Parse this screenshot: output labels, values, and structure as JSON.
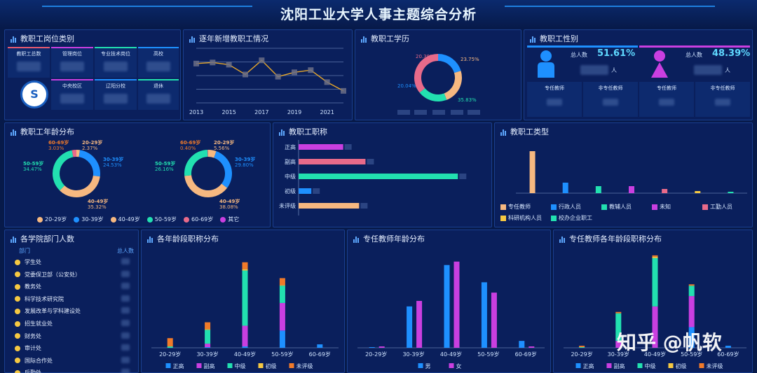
{
  "title": "沈阳工业大学人事主题综合分析",
  "watermark": "知乎 @帆软",
  "colors": {
    "blue": "#1e90ff",
    "magenta": "#c93fe0",
    "teal": "#22e0b0",
    "yellow": "#f5c842",
    "orange": "#f07a2a",
    "pink": "#e86a8a",
    "peach": "#f6b880"
  },
  "panels": {
    "post_type": {
      "title": "教职工岗位类别",
      "cells": [
        "教职工总数",
        "管理岗位",
        "专业技术岗位",
        "高校",
        "",
        "中央校区",
        "辽阳分校",
        "退休"
      ]
    },
    "yearly": {
      "title": "逐年新增教职工情况",
      "chart_data": {
        "type": "line",
        "x": [
          2013,
          2014,
          2015,
          2016,
          2017,
          2018,
          2019,
          2020,
          2021,
          2022
        ],
        "x_ticks": [
          "2013",
          "2015",
          "2017",
          "2019",
          "2021"
        ],
        "values": [
          72,
          74,
          70,
          52,
          78,
          48,
          56,
          60,
          38,
          22
        ],
        "ylim": [
          0,
          100
        ]
      }
    },
    "education": {
      "title": "教职工学历",
      "chart_data": {
        "type": "pie",
        "labels": [
          "20.38%",
          "23.75%",
          "20.04%",
          "35.83%"
        ],
        "values": [
          20.38,
          23.75,
          20.04,
          35.83
        ]
      }
    },
    "gender": {
      "title": "教职工性别",
      "male_label": "总人数",
      "male_pct": "51.61%",
      "female_label": "总人数",
      "female_pct": "48.39%",
      "unit": "人",
      "sub_left": "专任教师",
      "sub_right": "非专任教师"
    },
    "age": {
      "title": "教职工年龄分布",
      "chart_data": [
        {
          "type": "pie",
          "labels": [
            "20-29岁",
            "30-39岁",
            "40-49岁",
            "50-59岁",
            "60-69岁"
          ],
          "label_texts": [
            "20-29岁",
            "30-39岁",
            "40-49岁",
            "50-59岁",
            "60-69岁"
          ],
          "values": [
            2.37,
            24.53,
            35.32,
            34.47,
            3.03
          ],
          "pct_texts": [
            "2.37%",
            "24.53%",
            "35.32%",
            "34.47%",
            "3.03%"
          ]
        },
        {
          "type": "pie",
          "labels": [
            "20-29岁",
            "30-39岁",
            "40-49岁",
            "50-59岁",
            "60-69岁"
          ],
          "label_texts": [
            "20-29岁",
            "30-39岁",
            "40-49岁",
            "50-59岁",
            "60-69岁"
          ],
          "values": [
            5.56,
            29.8,
            38.08,
            26.16,
            0.4
          ],
          "pct_texts": [
            "5.56%",
            "29.80%",
            "38.08%",
            "26.16%",
            "0.40%"
          ]
        }
      ],
      "legend": [
        "20-29岁",
        "30-39岁",
        "40-49岁",
        "50-59岁",
        "60-69岁",
        "其它"
      ]
    },
    "rank": {
      "title": "教职工职称",
      "chart_data": {
        "type": "bar",
        "categories": [
          "正高",
          "副高",
          "中级",
          "初级",
          "未评级"
        ],
        "values": [
          28,
          42,
          100,
          8,
          38
        ],
        "xlim": [
          0,
          110
        ]
      }
    },
    "staff_type": {
      "title": "教职工类型",
      "chart_data": {
        "type": "bar",
        "categories": [
          "专任教师",
          "行政人员",
          "教辅人员",
          "未知",
          "工勤人员",
          "科研机构人员",
          "校办企业职工"
        ],
        "values": [
          60,
          15,
          10,
          10,
          6,
          3,
          2
        ],
        "ylim": [
          0,
          70
        ]
      },
      "legend": [
        "专任教师",
        "行政人员",
        "教辅人员",
        "未知",
        "工勤人员",
        "科研机构人员",
        "校办企业职工"
      ]
    },
    "departments": {
      "title": "各学院部门人数",
      "col_dept": "部门",
      "col_count": "总人数",
      "items": [
        "学生处",
        "党委保卫部（公安处）",
        "教务处",
        "科学技术研究院",
        "发展改革与学科建设处",
        "招生就业处",
        "财务处",
        "审计处",
        "国际合作处",
        "后勤处"
      ]
    },
    "age_rank": {
      "title": "各年龄段职称分布",
      "chart_data": {
        "type": "bar",
        "stacked": true,
        "categories": [
          "20-29岁",
          "30-39岁",
          "40-49岁",
          "50-59岁",
          "60-69岁"
        ],
        "series": [
          {
            "name": "正高",
            "values": [
              0,
              1,
              2,
              25,
              5
            ]
          },
          {
            "name": "副高",
            "values": [
              0,
              5,
              30,
              40,
              0
            ]
          },
          {
            "name": "中级",
            "values": [
              2,
              20,
              80,
              25,
              0
            ]
          },
          {
            "name": "初级",
            "values": [
              0,
              1,
              2,
              1,
              0
            ]
          },
          {
            "name": "未评级",
            "values": [
              12,
              10,
              10,
              10,
              0
            ]
          }
        ],
        "ylim": [
          0,
          140
        ]
      }
    },
    "teacher_age": {
      "title": "专任教师年龄分布",
      "chart_data": {
        "type": "bar",
        "categories": [
          "20-29岁",
          "30-39岁",
          "40-49岁",
          "50-59岁",
          "60-69岁"
        ],
        "series": [
          {
            "name": "男",
            "values": [
              1,
              60,
              120,
              95,
              10
            ]
          },
          {
            "name": "女",
            "values": [
              2,
              68,
              125,
              80,
              2
            ]
          }
        ],
        "ylim": [
          0,
          140
        ]
      }
    },
    "teacher_age_rank": {
      "title": "专任教师各年龄段职称分布",
      "chart_data": {
        "type": "bar",
        "stacked": true,
        "categories": [
          "20-29岁",
          "30-39岁",
          "40-49岁",
          "50-59岁",
          "60-69岁"
        ],
        "series": [
          {
            "name": "正高",
            "values": [
              0,
              0,
              0,
              30,
              3
            ]
          },
          {
            "name": "副高",
            "values": [
              0,
              10,
              60,
              45,
              0
            ]
          },
          {
            "name": "中级",
            "values": [
              1,
              40,
              70,
              15,
              0
            ]
          },
          {
            "name": "初级",
            "values": [
              0,
              0,
              2,
              0,
              0
            ]
          },
          {
            "name": "未评级",
            "values": [
              2,
              2,
              2,
              2,
              0
            ]
          }
        ],
        "ylim": [
          0,
          140
        ]
      }
    }
  }
}
